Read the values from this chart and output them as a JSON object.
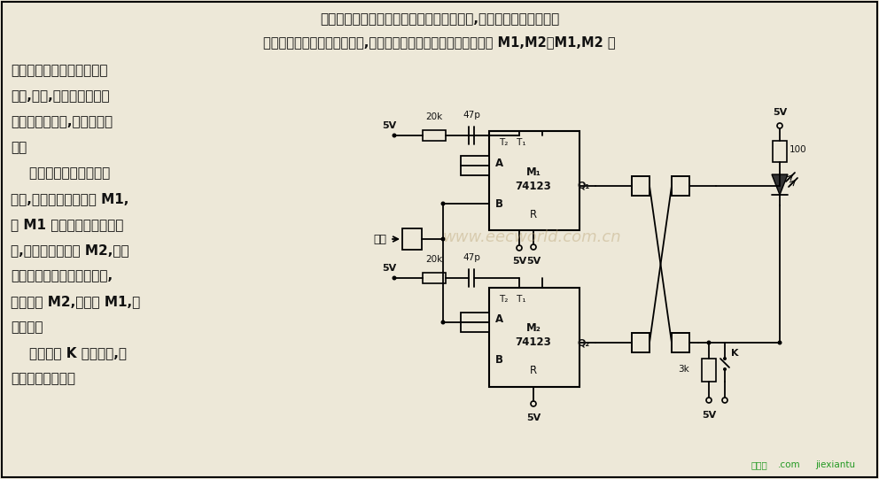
{
  "bg_color": "#ede8d8",
  "border_color": "#000000",
  "text_color": "#111111",
  "watermark_color": "#b8a888",
  "footer_color": "#228822",
  "title_line1": "本检测器电路能查出脉宽小于预定值的信号,并用发光二极管显示。",
  "title_line2": "被测信号经一级反相器整形后,分别用上升沿和下降沿触发单稳电路 M1,M2。M1,M2 的",
  "body_lines": [
    "单稳宽度预先调节到要求的",
    "宽度,这样,如果在这段时间",
    "内发生二次跳变,就会检测出",
    "来。",
    "    若正尖脉冲宽度小于设",
    "定值,则它的上升沿触发 M1,",
    "在 M1 的单稳周期尚未结束",
    "时,又用下降沿触发 M2,点亮",
    "发光二极管。若是负尖脉冲,",
    "则先触发 M2,再触发 M1,情",
    "况类似。",
    "    按钮开关 K 用于复位,使",
    "发光二极管熄灭。"
  ],
  "watermark_text": "www.eecworld.com.cn",
  "footer_left": "捷线图",
  "footer_mid": ".com",
  "footer_right": "jiexiantu"
}
